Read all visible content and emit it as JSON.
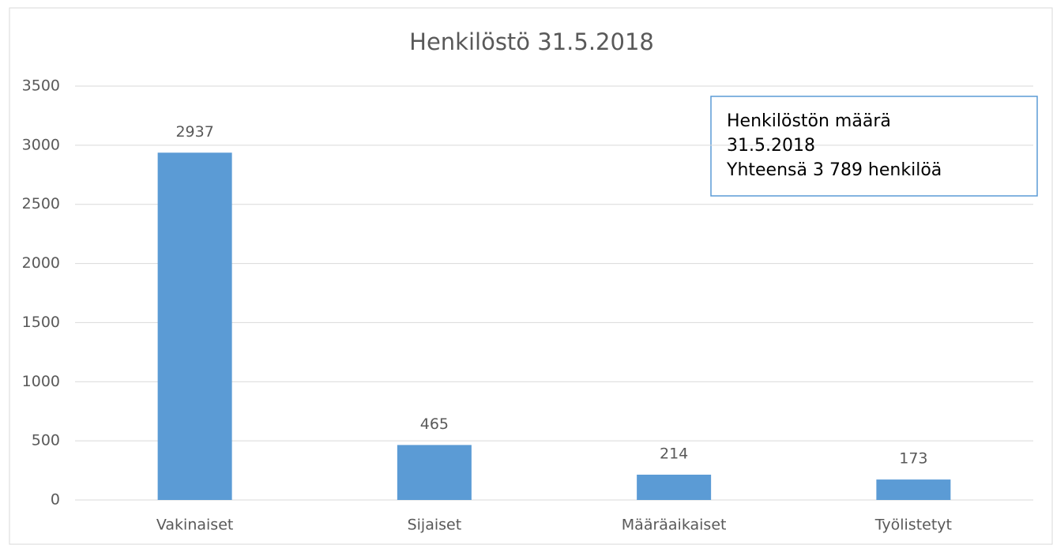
{
  "chart_data": {
    "type": "bar",
    "title": "Henkilöstö 31.5.2018",
    "categories": [
      "Vakinaiset",
      "Sijaiset",
      "Määräaikaiset",
      "Työlistetyt"
    ],
    "values": [
      2937,
      465,
      214,
      173
    ],
    "color": "#5b9bd5",
    "ylim": [
      0,
      3500
    ],
    "yticks": [
      0,
      500,
      1000,
      1500,
      2000,
      2500,
      3000,
      3500
    ],
    "grid": true,
    "annotation": [
      "Henkilöstön määrä",
      "31.5.2018",
      "Yhteensä 3 789 henkilöä"
    ]
  }
}
